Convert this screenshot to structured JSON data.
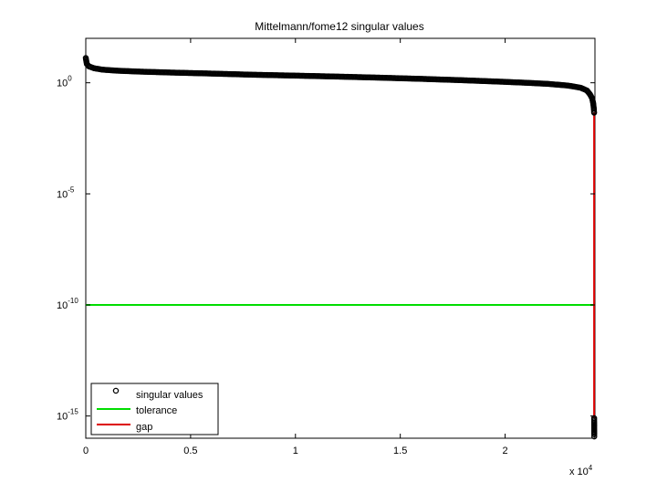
{
  "chart_data": {
    "type": "scatter",
    "title": "Mittelmann/fome12 singular values",
    "xlabel": "",
    "ylabel": "",
    "x_exponent_label": "x 10",
    "x_exponent_power": "4",
    "xlim": [
      0,
      24284
    ],
    "ylim": [
      1e-16,
      100.0
    ],
    "yscale": "log",
    "x_ticks": [
      {
        "value": 0,
        "label": "0"
      },
      {
        "value": 5000,
        "label": "0.5"
      },
      {
        "value": 10000,
        "label": "1"
      },
      {
        "value": 15000,
        "label": "1.5"
      },
      {
        "value": 20000,
        "label": "2"
      }
    ],
    "y_ticks": [
      {
        "value": 1.0,
        "base": "10",
        "power": "0"
      },
      {
        "value": 1e-05,
        "base": "10",
        "power": "-5"
      },
      {
        "value": 1e-10,
        "base": "10",
        "power": "-10"
      },
      {
        "value": 1e-15,
        "base": "10",
        "power": "-15"
      }
    ],
    "grid": false,
    "legend_position": "bottom-left",
    "series": [
      {
        "name": "singular values",
        "kind": "markers",
        "marker": "circle",
        "color": "#000000",
        "x": [
          0,
          50,
          150,
          400,
          800,
          1500,
          2500,
          4000,
          6000,
          8000,
          10000,
          12000,
          14000,
          16000,
          18000,
          20000,
          21000,
          22000,
          23000,
          23600,
          23900,
          24050,
          24150,
          24200,
          24230,
          24240,
          24245
        ],
        "y": [
          13,
          7,
          5.5,
          4.5,
          3.9,
          3.5,
          3.2,
          2.9,
          2.6,
          2.3,
          2.1,
          1.9,
          1.7,
          1.5,
          1.3,
          1.1,
          1.0,
          0.9,
          0.75,
          0.6,
          0.45,
          0.3,
          0.2,
          0.12,
          0.07,
          0.05,
          0.045
        ]
      },
      {
        "name": "singular values",
        "kind": "markers",
        "marker": "circle",
        "color": "#000000",
        "x": [
          24246,
          24247,
          24248,
          24249,
          24250,
          24251
        ],
        "y": [
          8e-16,
          5e-16,
          3e-16,
          2e-16,
          1.5e-16,
          1.2e-16
        ],
        "legend": false
      },
      {
        "name": "tolerance",
        "kind": "hline",
        "color": "#00dd00",
        "y": 1e-10
      },
      {
        "name": "gap",
        "kind": "vline",
        "color": "#dd0000",
        "x": 24245,
        "y_range": [
          0.045,
          8e-16
        ]
      }
    ]
  }
}
